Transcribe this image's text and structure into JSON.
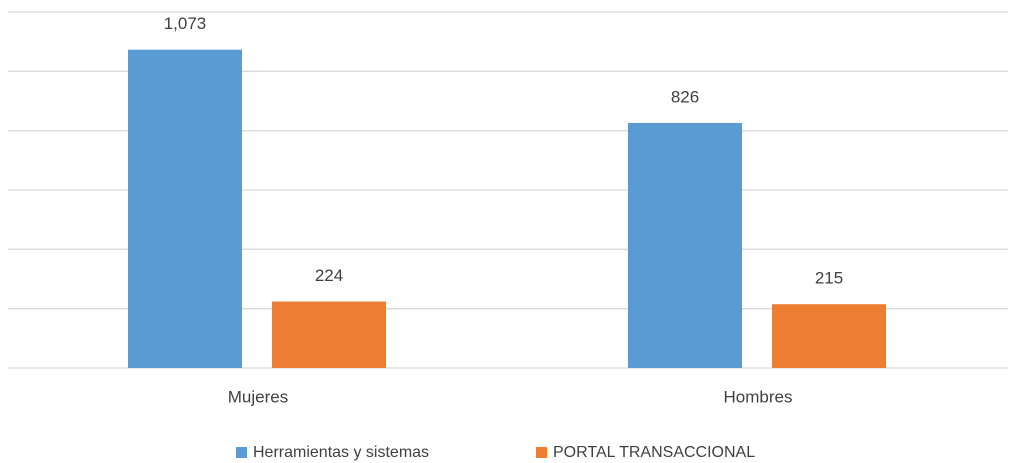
{
  "chart_data": {
    "type": "bar",
    "categories": [
      "Mujeres",
      "Hombres"
    ],
    "series": [
      {
        "name": "Herramientas y sistemas",
        "color": "#5b9bd5",
        "values": [
          1073,
          826
        ],
        "value_labels": [
          "1,073",
          "826"
        ]
      },
      {
        "name": "PORTAL TRANSACCIONAL",
        "color": "#ed7d31",
        "values": [
          224,
          215
        ],
        "value_labels": [
          "224",
          "215"
        ]
      }
    ],
    "ylim": [
      0,
      1200
    ],
    "yticks": [
      0,
      200,
      400,
      600,
      800,
      1000,
      1200
    ],
    "grid": true,
    "legend": "bottom"
  }
}
